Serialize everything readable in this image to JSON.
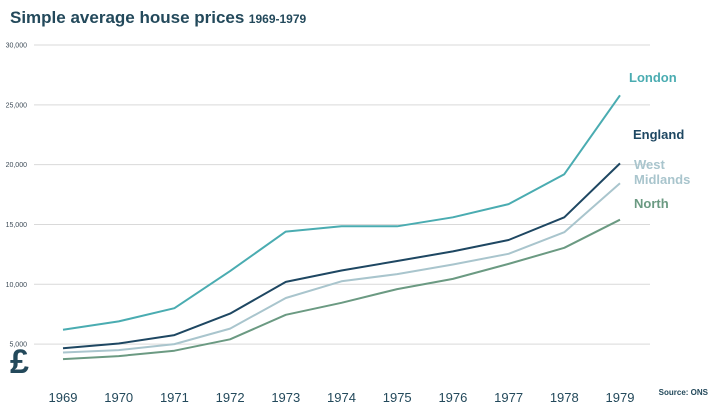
{
  "title": "Simple average house prices",
  "subtitle": "1969-1979",
  "currency_symbol": "£",
  "source": "Source: ONS",
  "chart_data": {
    "type": "line",
    "title": "Simple average house prices",
    "subtitle": "1969-1979",
    "xlabel": "",
    "ylabel": "",
    "x": [
      "1969",
      "1970",
      "1971",
      "1972",
      "1973",
      "1974",
      "1975",
      "1976",
      "1977",
      "1978",
      "1979"
    ],
    "yticks": [
      "5,000",
      "10,000",
      "15,000",
      "20,000",
      "25,000",
      "30,000"
    ],
    "ytick_values": [
      5000,
      10000,
      15000,
      20000,
      25000,
      30000
    ],
    "ylim": [
      2000,
      30000
    ],
    "grid": true,
    "legend": "labels at line ends",
    "series": [
      {
        "name": "London",
        "color": "#4aacb1",
        "values": [
          6200,
          6900,
          8000,
          11100,
          14400,
          14850,
          14850,
          15600,
          16700,
          19200,
          25800
        ]
      },
      {
        "name": "England",
        "color": "#1e4762",
        "values": [
          4650,
          5050,
          5750,
          7550,
          10200,
          11150,
          11950,
          12750,
          13700,
          15600,
          20100
        ]
      },
      {
        "name": "West Midlands",
        "name_lines": [
          "West",
          "Midlands"
        ],
        "color": "#a9c5cd",
        "values": [
          4300,
          4500,
          5000,
          6300,
          8850,
          10250,
          10850,
          11650,
          12550,
          14350,
          18450
        ]
      },
      {
        "name": "North",
        "color": "#6b9a82",
        "values": [
          3750,
          4000,
          4450,
          5400,
          7450,
          8450,
          9600,
          10450,
          11700,
          13050,
          15400
        ]
      }
    ]
  }
}
